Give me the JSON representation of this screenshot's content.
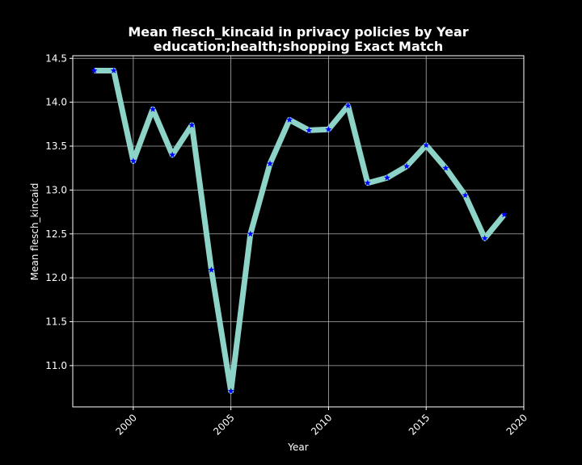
{
  "chart_data": {
    "type": "line",
    "title": "Mean flesch_kincaid in privacy policies by Year",
    "subtitle": "education;health;shopping Exact Match",
    "xlabel": "Year",
    "ylabel": "Mean flesch_kincaid",
    "xlim": [
      1996.9,
      2020.0
    ],
    "ylim": [
      10.53,
      14.53
    ],
    "x_ticks": [
      2000,
      2005,
      2010,
      2015,
      2020
    ],
    "x_tick_labels": [
      "2000",
      "2005",
      "2010",
      "2015",
      "2020"
    ],
    "y_ticks": [
      11.0,
      11.5,
      12.0,
      12.5,
      13.0,
      13.5,
      14.0,
      14.5
    ],
    "y_tick_labels": [
      "11.0",
      "11.5",
      "12.0",
      "12.5",
      "13.0",
      "13.5",
      "14.0",
      "14.5"
    ],
    "grid": true,
    "x": [
      1998,
      1999,
      2000,
      2001,
      2002,
      2003,
      2004,
      2005,
      2006,
      2007,
      2008,
      2009,
      2010,
      2011,
      2012,
      2013,
      2014,
      2015,
      2016,
      2017,
      2018,
      2019
    ],
    "values": [
      14.36,
      14.36,
      13.33,
      13.92,
      13.4,
      13.74,
      12.09,
      10.71,
      12.5,
      13.3,
      13.8,
      13.68,
      13.69,
      13.96,
      13.08,
      13.14,
      13.27,
      13.51,
      13.25,
      12.94,
      12.45,
      12.72
    ],
    "colors": {
      "background": "#000000",
      "line": "#8dd3c7",
      "marker": "#0000ff",
      "grid": "#b0b0b0",
      "text": "#ffffff"
    },
    "marker": "star"
  }
}
